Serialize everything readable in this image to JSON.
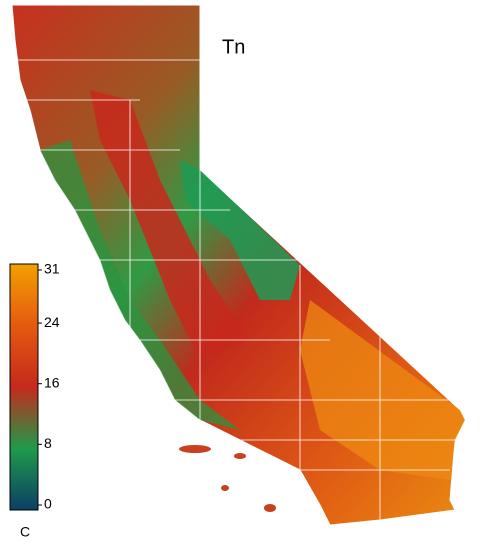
{
  "title": "Tn",
  "colorbar": {
    "lim": [
      0,
      31
    ],
    "ticks": [
      0,
      8,
      16,
      24,
      31
    ],
    "unit": "C",
    "colors": [
      "#0b3f66",
      "#1f9a4a",
      "#c52a1c",
      "#e45a10",
      "#f2a000"
    ]
  }
}
